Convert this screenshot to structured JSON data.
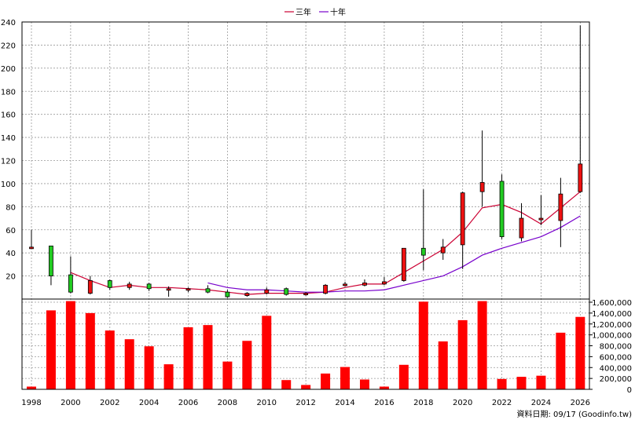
{
  "legend": {
    "series_3y": "三年",
    "series_10y": "十年"
  },
  "footer": {
    "source": "資料日期: 09/17  (Goodinfo.tw)"
  },
  "colors": {
    "up_candle": "#ee1111",
    "down_candle": "#22cc22",
    "line_3y": "#cc0033",
    "line_10y": "#7700cc",
    "volume_bar": "#ff0000",
    "grid": "#999999"
  },
  "chart_data": [
    {
      "type": "candlestick",
      "ylim": [
        0,
        240
      ],
      "yticks": [
        20,
        40,
        60,
        80,
        100,
        120,
        140,
        160,
        180,
        200,
        220,
        240
      ],
      "xticks": [
        "1998",
        "2000",
        "2002",
        "2004",
        "2006",
        "2008",
        "2010",
        "2012",
        "2014",
        "2016",
        "2018",
        "2020",
        "2022",
        "2024",
        "2026"
      ],
      "grid": true,
      "legend_position": "top-center",
      "candles": [
        {
          "year": 1998,
          "open": 45,
          "close": 45,
          "high": 60,
          "low": 44
        },
        {
          "year": 1999,
          "open": 46,
          "close": 20,
          "high": 46,
          "low": 12
        },
        {
          "year": 2000,
          "open": 21,
          "close": 6,
          "high": 37,
          "low": 5
        },
        {
          "year": 2001,
          "open": 5,
          "close": 16,
          "high": 20,
          "low": 4
        },
        {
          "year": 2002,
          "open": 16,
          "close": 10,
          "high": 17,
          "low": 8
        },
        {
          "year": 2003,
          "open": 10,
          "close": 13,
          "high": 15,
          "low": 8
        },
        {
          "year": 2004,
          "open": 13,
          "close": 9,
          "high": 14,
          "low": 7
        },
        {
          "year": 2005,
          "open": 9,
          "close": 9,
          "high": 11,
          "low": 2
        },
        {
          "year": 2006,
          "open": 8,
          "close": 9,
          "high": 10,
          "low": 6
        },
        {
          "year": 2007,
          "open": 9,
          "close": 6,
          "high": 12,
          "low": 5
        },
        {
          "year": 2008,
          "open": 6,
          "close": 2,
          "high": 8,
          "low": 1
        },
        {
          "year": 2009,
          "open": 3,
          "close": 5,
          "high": 6,
          "low": 2
        },
        {
          "year": 2010,
          "open": 5,
          "close": 8,
          "high": 10,
          "low": 4
        },
        {
          "year": 2011,
          "open": 9,
          "close": 4,
          "high": 10,
          "low": 3
        },
        {
          "year": 2012,
          "open": 4,
          "close": 5,
          "high": 6,
          "low": 3
        },
        {
          "year": 2013,
          "open": 5,
          "close": 12,
          "high": 13,
          "low": 4
        },
        {
          "year": 2014,
          "open": 12,
          "close": 13,
          "high": 15,
          "low": 11
        },
        {
          "year": 2015,
          "open": 12,
          "close": 14,
          "high": 17,
          "low": 11
        },
        {
          "year": 2016,
          "open": 13,
          "close": 15,
          "high": 19,
          "low": 12
        },
        {
          "year": 2017,
          "open": 16,
          "close": 44,
          "high": 44,
          "low": 15
        },
        {
          "year": 2018,
          "open": 44,
          "close": 38,
          "high": 95,
          "low": 25
        },
        {
          "year": 2019,
          "open": 40,
          "close": 45,
          "high": 52,
          "low": 34
        },
        {
          "year": 2020,
          "open": 47,
          "close": 92,
          "high": 93,
          "low": 26
        },
        {
          "year": 2021,
          "open": 93,
          "close": 101,
          "high": 146,
          "low": 80
        },
        {
          "year": 2022,
          "open": 102,
          "close": 54,
          "high": 108,
          "low": 52
        },
        {
          "year": 2023,
          "open": 53,
          "close": 70,
          "high": 83,
          "low": 50
        },
        {
          "year": 2024,
          "open": 70,
          "close": 70,
          "high": 90,
          "low": 64
        },
        {
          "year": 2025,
          "open": 68,
          "close": 91,
          "high": 105,
          "low": 45
        },
        {
          "year": 2026,
          "open": 93,
          "close": 117,
          "high": 237,
          "low": 92
        }
      ],
      "series": [
        {
          "name": "三年",
          "x": [
            2000,
            2001,
            2002,
            2003,
            2004,
            2005,
            2006,
            2007,
            2008,
            2009,
            2010,
            2011,
            2012,
            2013,
            2014,
            2015,
            2016,
            2017,
            2018,
            2019,
            2020,
            2021,
            2022,
            2023,
            2024,
            2025,
            2026
          ],
          "values": [
            23,
            16,
            10,
            12,
            10,
            10,
            9,
            8,
            6,
            4,
            5,
            5,
            5,
            6,
            10,
            13,
            13,
            23,
            33,
            43,
            58,
            79,
            82,
            75,
            65,
            79,
            93
          ]
        },
        {
          "name": "十年",
          "x": [
            2007,
            2008,
            2009,
            2010,
            2011,
            2012,
            2013,
            2014,
            2015,
            2016,
            2017,
            2018,
            2019,
            2020,
            2021,
            2022,
            2023,
            2024,
            2025,
            2026
          ],
          "values": [
            14,
            10,
            8,
            8,
            7,
            6,
            6,
            7,
            7,
            8,
            12,
            16,
            20,
            28,
            38,
            44,
            49,
            54,
            62,
            72
          ]
        }
      ]
    },
    {
      "type": "bar",
      "series_name": "volume",
      "ylim": [
        0,
        1600000
      ],
      "yticks": [
        "0",
        "200,000",
        "400,000",
        "600,000",
        "800,000",
        "1,000,000",
        "1,200,000",
        "1,400,000",
        "1,600,000"
      ],
      "ytick_values": [
        0,
        200000,
        400000,
        600000,
        800000,
        1000000,
        1200000,
        1400000,
        1600000
      ],
      "categories": [
        1998,
        1999,
        2000,
        2001,
        2002,
        2003,
        2004,
        2005,
        2006,
        2007,
        2008,
        2009,
        2010,
        2011,
        2012,
        2013,
        2014,
        2015,
        2016,
        2017,
        2018,
        2019,
        2020,
        2021,
        2022,
        2023,
        2024,
        2025,
        2026
      ],
      "values": [
        50000,
        1450000,
        1620000,
        1400000,
        1080000,
        920000,
        790000,
        460000,
        1140000,
        1180000,
        510000,
        890000,
        1350000,
        170000,
        80000,
        290000,
        410000,
        180000,
        50000,
        450000,
        1610000,
        880000,
        1270000,
        1620000,
        190000,
        230000,
        250000,
        1040000,
        1330000
      ]
    }
  ]
}
